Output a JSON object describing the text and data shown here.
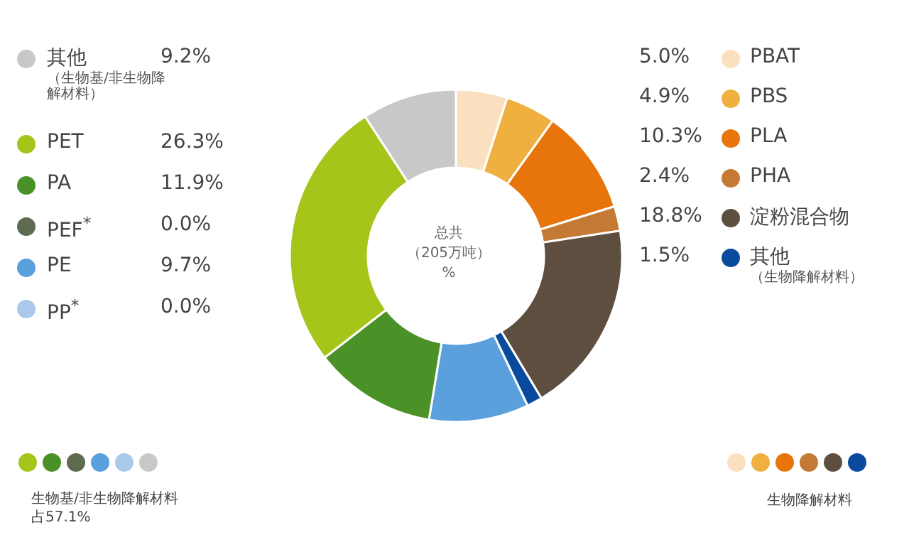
{
  "chart_data": {
    "type": "donut",
    "title": "总共（205万吨）%",
    "categories": [
      "PBAT",
      "PBS",
      "PLA",
      "PHA",
      "淀粉混合物",
      "其他（生物降解材料）",
      "PP$^{*}$",
      "PE",
      "PEF$^{*}$",
      "PA",
      "PET",
      "其他（生物基/非生物降解材料）"
    ],
    "values": [
      5.0,
      4.9,
      10.3,
      2.4,
      18.8,
      1.5,
      0.0,
      9.7,
      0.0,
      11.9,
      26.3,
      9.2
    ],
    "value_labels": [
      "5.0%",
      "4.9%",
      "10.3%",
      "2.4%",
      "18.8%",
      "1.5%",
      "0.0%",
      "9.7%",
      "0.0%",
      "11.9%",
      "26.3%",
      "9.2%"
    ],
    "colors": [
      "#fbe0bf",
      "#f0b040",
      "#e8740c",
      "#c47a35",
      "#5e4e40",
      "#0a4a9c",
      "#a9c8ea",
      "#5aa0dc",
      "#5e6b50",
      "#4a9128",
      "#a5c51a",
      "#c8c8c8"
    ],
    "legend": "bottom",
    "annotations": [
      "生物基/非生物降解材料占57.1%",
      "生物降解材料"
    ]
  }
}
